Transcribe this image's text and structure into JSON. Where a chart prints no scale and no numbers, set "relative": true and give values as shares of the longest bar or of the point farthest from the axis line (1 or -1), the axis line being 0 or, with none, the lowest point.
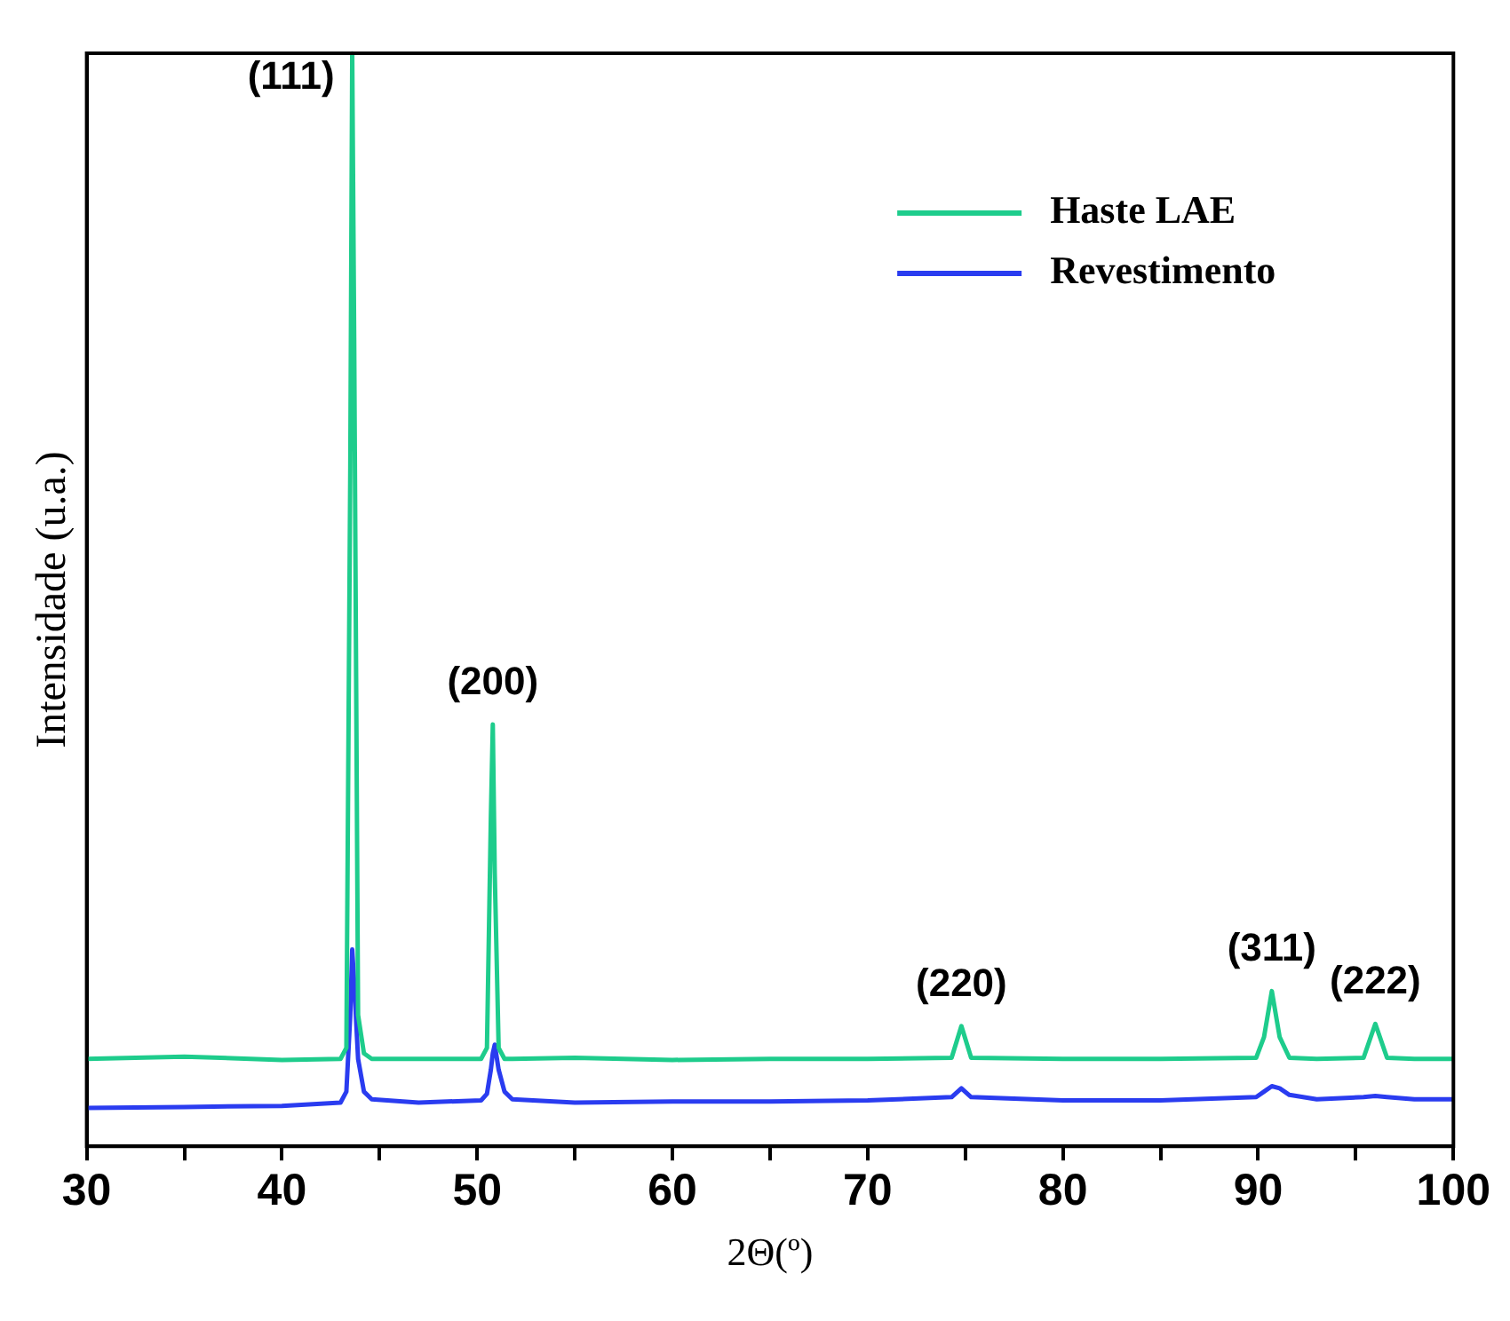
{
  "chart_data": {
    "type": "line",
    "xlabel": "2Θ(º)",
    "ylabel": "Intensidade (u.a.)",
    "relative": true,
    "legend": "top right",
    "grid": false,
    "marker": "none",
    "line_style": "solid",
    "xlim": [
      30,
      100
    ],
    "xticks": [
      30,
      {
        "value": 35,
        "label": null
      },
      40,
      {
        "value": 45,
        "label": null
      },
      50,
      {
        "value": 55,
        "label": null
      },
      60,
      {
        "value": 65,
        "label": null
      },
      70,
      {
        "value": 75,
        "label": null
      },
      80,
      {
        "value": 85,
        "label": null
      },
      90,
      {
        "value": 95,
        "label": null
      },
      100
    ],
    "x": [
      30,
      35,
      40,
      43.0,
      43.3,
      43.5,
      43.6,
      43.7,
      43.9,
      44.2,
      44.6,
      47,
      50.2,
      50.5,
      50.7,
      50.8,
      50.9,
      51.1,
      51.4,
      51.8,
      55,
      60,
      65,
      70,
      74.3,
      74.8,
      75.3,
      80,
      85,
      89.9,
      90.3,
      90.7,
      91.1,
      91.6,
      93,
      95.4,
      96.0,
      96.6,
      98,
      100
    ],
    "series": [
      {
        "name": "Haste LAE",
        "color": "#1ecc8c",
        "values": [
          0.08,
          0.082,
          0.079,
          0.08,
          0.09,
          0.62,
          1.0,
          0.74,
          0.12,
          0.085,
          0.08,
          0.08,
          0.08,
          0.09,
          0.3,
          0.386,
          0.25,
          0.09,
          0.08,
          0.08,
          0.081,
          0.079,
          0.08,
          0.08,
          0.081,
          0.11,
          0.081,
          0.08,
          0.08,
          0.081,
          0.1,
          0.142,
          0.1,
          0.081,
          0.08,
          0.081,
          0.112,
          0.081,
          0.08,
          0.08
        ]
      },
      {
        "name": "Revestimento",
        "color": "#2a3cf0",
        "values": [
          0.035,
          0.036,
          0.037,
          0.04,
          0.05,
          0.12,
          0.18,
          0.15,
          0.08,
          0.05,
          0.043,
          0.04,
          0.042,
          0.048,
          0.07,
          0.085,
          0.093,
          0.07,
          0.05,
          0.043,
          0.04,
          0.041,
          0.041,
          0.042,
          0.045,
          0.053,
          0.045,
          0.042,
          0.042,
          0.045,
          0.05,
          0.055,
          0.053,
          0.047,
          0.043,
          0.045,
          0.046,
          0.045,
          0.043,
          0.043
        ]
      }
    ],
    "annotations": [
      {
        "text": "(111)",
        "x": 43.6,
        "y": 1.0
      },
      {
        "text": "(200)",
        "x": 50.8,
        "y": 0.386
      },
      {
        "text": "(220)",
        "x": 74.8,
        "y": 0.11
      },
      {
        "text": "(311)",
        "x": 90.7,
        "y": 0.142
      },
      {
        "text": "(222)",
        "x": 96.0,
        "y": 0.112
      }
    ]
  }
}
